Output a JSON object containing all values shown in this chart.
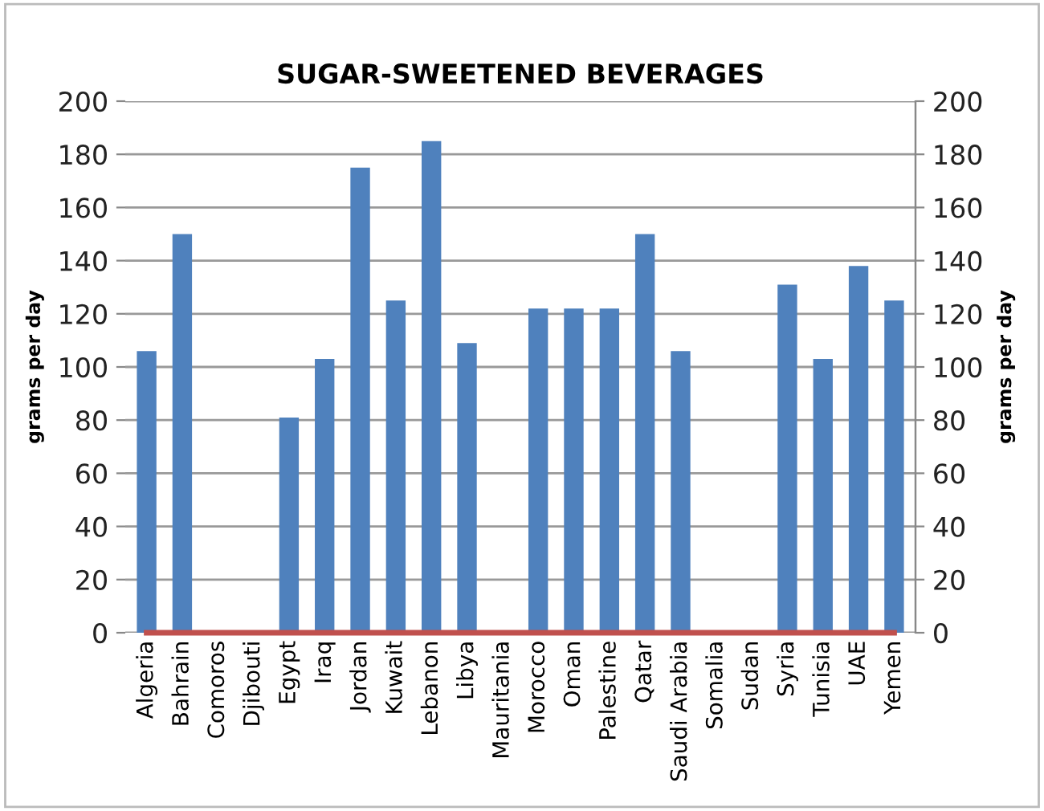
{
  "chart_data": {
    "type": "bar",
    "title": "SUGAR-SWEETENED BEVERAGES",
    "ylabel": "grams per day",
    "y2label": "grams per day",
    "categories": [
      "Algeria",
      "Bahrain",
      "Comoros",
      "Djibouti",
      "Egypt",
      "Iraq",
      "Jordan",
      "Kuwait",
      "Lebanon",
      "Libya",
      "Mauritania",
      "Morocco",
      "Oman",
      "Palestine",
      "Qatar",
      "Saudi Arabia",
      "Somalia",
      "Sudan",
      "Syria",
      "Tunisia",
      "UAE",
      "Yemen"
    ],
    "series": [
      {
        "color": "#4f81bd",
        "values": [
          106,
          150,
          null,
          null,
          81,
          103,
          175,
          125,
          185,
          109,
          null,
          122,
          122,
          122,
          150,
          106,
          null,
          null,
          131,
          103,
          138,
          125
        ]
      },
      {
        "type": "line",
        "color": "#c0504d",
        "values": [
          0,
          0,
          0,
          0,
          0,
          0,
          0,
          0,
          0,
          0,
          0,
          0,
          0,
          0,
          0,
          0,
          0,
          0,
          0,
          0,
          0,
          0
        ]
      }
    ],
    "ylim": [
      0,
      200
    ],
    "yticks": [
      0,
      20,
      40,
      60,
      80,
      100,
      120,
      140,
      160,
      180,
      200
    ],
    "y2lim": [
      0,
      200
    ],
    "y2ticks": [
      0,
      20,
      40,
      60,
      80,
      100,
      120,
      140,
      160,
      180,
      200
    ],
    "grid": "y"
  }
}
